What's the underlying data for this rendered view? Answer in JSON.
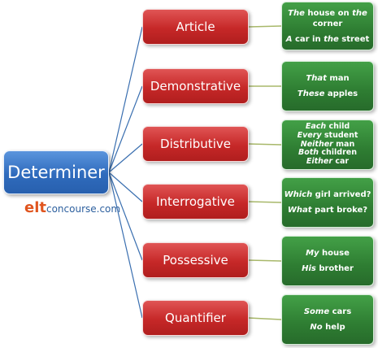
{
  "root": {
    "label": "Determiner"
  },
  "brand": {
    "prefix": "elt",
    "suffix": "concourse.com"
  },
  "categories": [
    {
      "label": "Article",
      "examples": [
        [
          [
            "i",
            "The"
          ],
          [
            "n",
            " house on "
          ],
          [
            "i",
            "the"
          ],
          [
            "n",
            " corner"
          ]
        ],
        [
          [
            "i",
            "A"
          ],
          [
            "n",
            " car in "
          ],
          [
            "i",
            "the"
          ],
          [
            "n",
            " street"
          ]
        ]
      ]
    },
    {
      "label": "Demonstrative",
      "examples": [
        [
          [
            "i",
            "That"
          ],
          [
            "n",
            " man"
          ]
        ],
        [
          [
            "i",
            "These"
          ],
          [
            "n",
            " apples"
          ]
        ]
      ]
    },
    {
      "label": "Distributive",
      "examples": [
        [
          [
            "i",
            "Each"
          ],
          [
            "n",
            " child"
          ]
        ],
        [
          [
            "i",
            "Every"
          ],
          [
            "n",
            " student"
          ]
        ],
        [
          [
            "i",
            "Neither"
          ],
          [
            "n",
            " man"
          ]
        ],
        [
          [
            "i",
            "Both"
          ],
          [
            "n",
            " children"
          ]
        ],
        [
          [
            "i",
            "Either"
          ],
          [
            "n",
            " car"
          ]
        ]
      ]
    },
    {
      "label": "Interrogative",
      "examples": [
        [
          [
            "i",
            "Which"
          ],
          [
            "n",
            " girl arrived?"
          ]
        ],
        [
          [
            "i",
            "What"
          ],
          [
            "n",
            " part broke?"
          ]
        ]
      ]
    },
    {
      "label": "Possessive",
      "examples": [
        [
          [
            "i",
            "My"
          ],
          [
            "n",
            " house"
          ]
        ],
        [
          [
            "i",
            "His"
          ],
          [
            "n",
            " brother"
          ]
        ]
      ]
    },
    {
      "label": "Quantifier",
      "examples": [
        [
          [
            "i",
            "Some"
          ],
          [
            "n",
            " cars"
          ]
        ],
        [
          [
            "i",
            "No"
          ],
          [
            "n",
            " help"
          ]
        ]
      ]
    }
  ],
  "colors": {
    "root": "#2f6bbd",
    "category": "#c62828",
    "example": "#2e7d32",
    "connector_root": "#3a6fb0",
    "connector_leaf": "#a8b86a"
  }
}
